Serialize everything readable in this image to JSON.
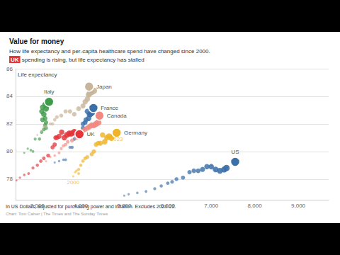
{
  "chart_data": {
    "type": "scatter",
    "title": "Value for money",
    "subtitle": [
      "How life expectancy and per-capita healthcare spend have changed since 2000.",
      "UK spending is rising, but life expectancy has stalled"
    ],
    "y_label": "Life expectancy",
    "footnote": "In US Dollars, adjusted for purchasing power and inflation. Excludes 2020-22.",
    "source": "Chart: Tom Calver | The Times and The Sunday Times",
    "xlim": [
      2500,
      9700
    ],
    "xticks": [
      {
        "value": 3000,
        "label": "3,000"
      },
      {
        "value": 4000,
        "label": "4,000"
      },
      {
        "value": 5000,
        "label": "5,000"
      },
      {
        "value": 6000,
        "label": "6,000"
      },
      {
        "value": 7000,
        "label": "7,000"
      },
      {
        "value": 8000,
        "label": "8,000"
      },
      {
        "value": 9000,
        "label": "9,000"
      }
    ],
    "ylim": [
      76.5,
      86
    ],
    "yticks": [
      78,
      80,
      82,
      84,
      86
    ],
    "grid": true,
    "marker": "circle",
    "series": [
      {
        "name": "Italy",
        "color": "#3f9b4a",
        "values": [
          [
            2700,
            79.9
          ],
          [
            2780,
            80.2
          ],
          [
            2850,
            80.1
          ],
          [
            2900,
            80.0
          ],
          [
            2950,
            80.9
          ],
          [
            3050,
            80.9
          ],
          [
            3100,
            81.4
          ],
          [
            3150,
            81.6
          ],
          [
            3200,
            81.7
          ],
          [
            3180,
            81.9
          ],
          [
            3200,
            82.1
          ],
          [
            3180,
            82.4
          ],
          [
            3120,
            82.3
          ],
          [
            3100,
            82.9
          ],
          [
            3120,
            83.2
          ],
          [
            3150,
            82.7
          ],
          [
            3180,
            83.4
          ],
          [
            3200,
            83.1
          ],
          [
            3230,
            83.4
          ],
          [
            3280,
            83.5
          ],
          [
            3270,
            83.6
          ]
        ]
      },
      {
        "name": "Japan",
        "color": "#c8b59a",
        "values": [
          [
            3000,
            81.2
          ],
          [
            3100,
            81.5
          ],
          [
            3150,
            81.8
          ],
          [
            3200,
            81.8
          ],
          [
            3300,
            82.0
          ],
          [
            3350,
            82.0
          ],
          [
            3400,
            82.3
          ],
          [
            3450,
            82.5
          ],
          [
            3550,
            82.6
          ],
          [
            3650,
            82.9
          ],
          [
            3750,
            82.9
          ],
          [
            3850,
            82.7
          ],
          [
            3950,
            83.1
          ],
          [
            4050,
            83.3
          ],
          [
            4100,
            83.6
          ],
          [
            4150,
            83.8
          ],
          [
            4180,
            84.1
          ],
          [
            4200,
            84.2
          ],
          [
            4250,
            84.3
          ],
          [
            4300,
            84.4
          ],
          [
            4190,
            84.7
          ]
        ]
      },
      {
        "name": "France",
        "color": "#3b6fa8",
        "values": [
          [
            3400,
            79.2
          ],
          [
            3500,
            79.3
          ],
          [
            3600,
            79.4
          ],
          [
            3650,
            79.4
          ],
          [
            3750,
            80.3
          ],
          [
            3800,
            80.3
          ],
          [
            3850,
            80.9
          ],
          [
            3900,
            81.1
          ],
          [
            3950,
            81.2
          ],
          [
            4000,
            81.4
          ],
          [
            4050,
            81.7
          ],
          [
            4050,
            82.0
          ],
          [
            4100,
            82.1
          ],
          [
            4120,
            82.3
          ],
          [
            4150,
            82.9
          ],
          [
            4180,
            82.4
          ],
          [
            4200,
            82.7
          ],
          [
            4220,
            82.7
          ],
          [
            4250,
            82.8
          ],
          [
            4300,
            82.9
          ],
          [
            4290,
            83.15
          ]
        ]
      },
      {
        "name": "Canada",
        "color": "#f08a80",
        "values": [
          [
            3200,
            79.3
          ],
          [
            3300,
            79.6
          ],
          [
            3400,
            79.7
          ],
          [
            3500,
            79.9
          ],
          [
            3550,
            80.2
          ],
          [
            3600,
            80.4
          ],
          [
            3650,
            80.5
          ],
          [
            3700,
            80.7
          ],
          [
            3800,
            80.8
          ],
          [
            3900,
            81.0
          ],
          [
            3950,
            81.2
          ],
          [
            4000,
            81.4
          ],
          [
            4050,
            81.5
          ],
          [
            4100,
            81.6
          ],
          [
            4150,
            81.7
          ],
          [
            4200,
            81.8
          ],
          [
            4250,
            81.9
          ],
          [
            4300,
            81.9
          ],
          [
            4350,
            82.0
          ],
          [
            4400,
            82.1
          ],
          [
            4430,
            82.6
          ]
        ]
      },
      {
        "name": "UK",
        "color": "#e5343a",
        "values": [
          [
            2520,
            77.9
          ],
          [
            2600,
            78.1
          ],
          [
            2700,
            78.3
          ],
          [
            2800,
            78.4
          ],
          [
            2900,
            78.8
          ],
          [
            3000,
            79.0
          ],
          [
            3080,
            79.3
          ],
          [
            3150,
            79.5
          ],
          [
            3250,
            79.7
          ],
          [
            3350,
            80.3
          ],
          [
            3400,
            80.5
          ],
          [
            3420,
            81.0
          ],
          [
            3450,
            81.0
          ],
          [
            3500,
            81.1
          ],
          [
            3560,
            81.4
          ],
          [
            3620,
            81.0
          ],
          [
            3680,
            81.2
          ],
          [
            3730,
            81.3
          ],
          [
            3780,
            81.3
          ],
          [
            3850,
            81.4
          ],
          [
            3970,
            81.25
          ]
        ]
      },
      {
        "name": "Germany",
        "color": "#f0b429",
        "values": [
          [
            3825,
            78.2
          ],
          [
            3870,
            78.5
          ],
          [
            3900,
            78.6
          ],
          [
            3950,
            78.4
          ],
          [
            3950,
            78.7
          ],
          [
            4000,
            79.0
          ],
          [
            4050,
            79.3
          ],
          [
            4100,
            79.5
          ],
          [
            4150,
            79.6
          ],
          [
            4250,
            79.8
          ],
          [
            4300,
            80.0
          ],
          [
            4350,
            80.5
          ],
          [
            4400,
            80.6
          ],
          [
            4450,
            80.6
          ],
          [
            4500,
            81.2
          ],
          [
            4550,
            80.7
          ],
          [
            4600,
            81.0
          ],
          [
            4650,
            81.1
          ],
          [
            4700,
            81.0
          ],
          [
            4800,
            81.4
          ],
          [
            4825,
            81.35
          ]
        ]
      },
      {
        "name": "US",
        "color": "#3b6fa8",
        "values": [
          [
            5000,
            76.8
          ],
          [
            5100,
            76.9
          ],
          [
            5300,
            77.0
          ],
          [
            5500,
            77.1
          ],
          [
            5700,
            77.3
          ],
          [
            5850,
            77.5
          ],
          [
            6000,
            77.7
          ],
          [
            6100,
            77.8
          ],
          [
            6200,
            78.0
          ],
          [
            6350,
            78.1
          ],
          [
            6500,
            78.5
          ],
          [
            6600,
            78.6
          ],
          [
            6700,
            78.6
          ],
          [
            6800,
            78.7
          ],
          [
            6900,
            78.9
          ],
          [
            7000,
            78.9
          ],
          [
            7100,
            78.7
          ],
          [
            7200,
            78.6
          ],
          [
            7300,
            78.7
          ],
          [
            7350,
            78.8
          ],
          [
            7550,
            79.25
          ]
        ]
      }
    ],
    "annotations": [
      {
        "text": "2000",
        "x": 3825,
        "y": 78.2,
        "color": "#f0b429"
      },
      {
        "text": "2023",
        "x": 4825,
        "y": 81.35,
        "color": "#f0b429"
      }
    ]
  }
}
